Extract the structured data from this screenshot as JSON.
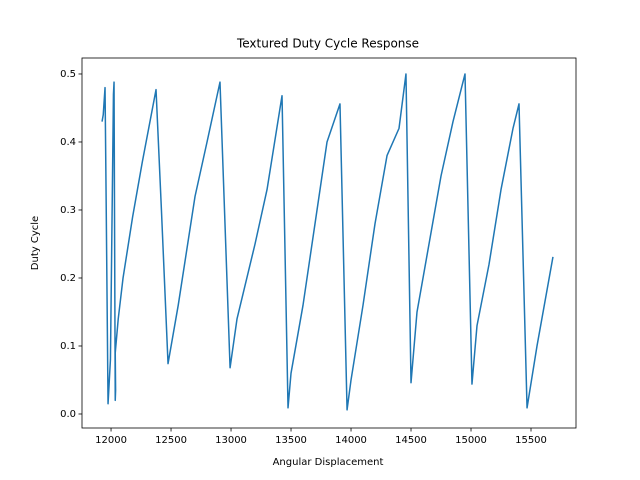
{
  "chart_data": {
    "type": "line",
    "title": "Textured Duty Cycle Response",
    "xlabel": "Angular Displacement",
    "ylabel": "Duty Cycle",
    "x": [
      11925,
      11935,
      11950,
      11960,
      11975,
      11995,
      12020,
      12025,
      12030,
      12035,
      12038,
      12035,
      12060,
      12100,
      12180,
      12260,
      12375,
      12420,
      12475,
      12560,
      12700,
      12800,
      12908,
      12992,
      13050,
      13200,
      13300,
      13425,
      13475,
      13500,
      13600,
      13700,
      13800,
      13908,
      13967,
      14000,
      14100,
      14200,
      14300,
      14400,
      14458,
      14500,
      14550,
      14650,
      14750,
      14850,
      14950,
      15008,
      15050,
      15150,
      15250,
      15350,
      15400,
      15467,
      15550,
      15683
    ],
    "series": [
      {
        "name": "Duty Cycle",
        "color": "#1f77b4",
        "values": [
          0.43,
          0.44,
          0.48,
          0.3,
          0.015,
          0.08,
          0.47,
          0.488,
          0.25,
          0.02,
          0.035,
          0.09,
          0.14,
          0.2,
          0.29,
          0.37,
          0.477,
          0.3,
          0.074,
          0.16,
          0.32,
          0.4,
          0.488,
          0.068,
          0.14,
          0.25,
          0.33,
          0.468,
          0.009,
          0.06,
          0.16,
          0.28,
          0.4,
          0.456,
          0.006,
          0.05,
          0.16,
          0.28,
          0.38,
          0.42,
          0.5,
          0.046,
          0.15,
          0.25,
          0.35,
          0.43,
          0.5,
          0.044,
          0.13,
          0.22,
          0.33,
          0.42,
          0.456,
          0.009,
          0.1,
          0.231
        ]
      }
    ],
    "xlim": [
      11758,
      15875
    ],
    "ylim": [
      -0.0206,
      0.5235
    ],
    "xticks": [
      12000,
      12500,
      13000,
      13500,
      14000,
      14500,
      15000,
      15500
    ],
    "yticks": [
      {
        "value": 0,
        "label": "0.0"
      },
      0.1,
      0.2,
      0.3,
      0.4,
      0.5
    ]
  }
}
